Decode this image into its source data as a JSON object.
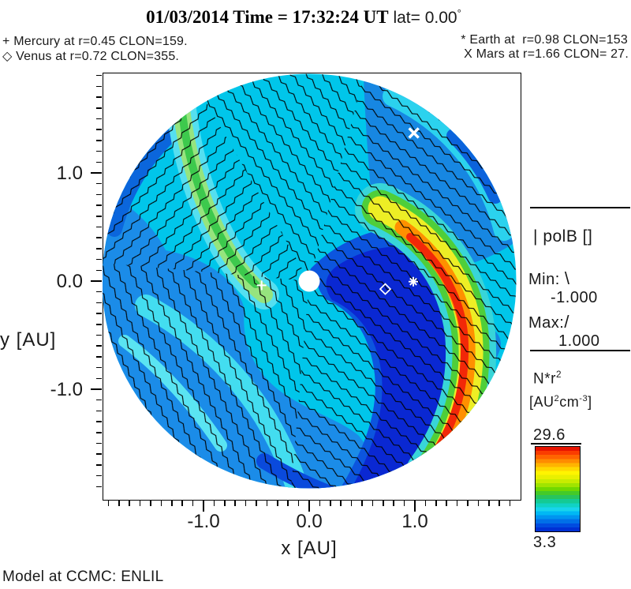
{
  "header": {
    "title_main": "01/03/2014 Time = 17:32:24 UT",
    "title_lat": " lat= 0.00",
    "degree_symbol": "°"
  },
  "planets_legend": {
    "mercury": "+ Mercury at r=0.45 CLON=159.",
    "venus": "◇ Venus at r=0.72 CLON=355.",
    "earth": "* Earth at  r=0.98 CLON=153",
    "mars": "X Mars at r=1.66 CLON= 27."
  },
  "axes": {
    "x_label": "x [AU]",
    "y_label": "y [AU]",
    "x_ticks": [
      "-1.0",
      "0.0",
      "1.0"
    ],
    "y_ticks": [
      "1.0",
      "0.0",
      "-1.0"
    ]
  },
  "polb_legend": {
    "bar_glyph": "|",
    "title": "polB []",
    "min_label": "Min:",
    "min_glyph": "\\",
    "min_value": "-1.000",
    "max_label": "Max:",
    "max_glyph": "/",
    "max_value": "1.000"
  },
  "colorbar": {
    "quantity": "N*r",
    "quantity_sup": "2",
    "units_pre": "[AU",
    "units_sup1": "2",
    "units_mid": "cm",
    "units_sup2": "-3",
    "units_post": "]",
    "max": "29.6",
    "min": "3.3",
    "colors": [
      "#e81400",
      "#fa3c00",
      "#ff6400",
      "#ff8c00",
      "#ffb400",
      "#ffd800",
      "#fff400",
      "#e8f000",
      "#c8ec00",
      "#a0e400",
      "#70d800",
      "#44ca28",
      "#28c45c",
      "#14ca94",
      "#10d2c4",
      "#18d4ec",
      "#00b8f4",
      "#0094f0",
      "#0070e8",
      "#004ce0",
      "#0030d4"
    ]
  },
  "footer": {
    "model": "Model at CCMC: ENLIL"
  },
  "chart_data": {
    "type": "polar-heatmap",
    "model": "ENLIL",
    "datetime": "01/03/2014 17:32:24 UT",
    "latitude_deg": 0.0,
    "quantity": "N*r^2 [AU^2 cm^-3]",
    "scale_min": 3.3,
    "scale_max": 29.6,
    "polB_min": -1.0,
    "polB_max": 1.0,
    "x_range_au": [
      -1.95,
      1.95
    ],
    "y_range_au": [
      -1.95,
      1.95
    ],
    "disk_radius_au": 1.95,
    "sun": {
      "x_au": 0.0,
      "y_au": 0.0
    },
    "planets": [
      {
        "name": "mercury",
        "symbol": "+",
        "r_au": 0.45,
        "clon": 159,
        "x_au": -0.45,
        "y_au": -0.04
      },
      {
        "name": "venus",
        "symbol": "diamond",
        "r_au": 0.72,
        "clon": 355,
        "x_au": 0.72,
        "y_au": -0.075
      },
      {
        "name": "earth",
        "symbol": "*",
        "r_au": 0.98,
        "clon": 153,
        "x_au": 0.985,
        "y_au": -0.005
      },
      {
        "name": "mars",
        "symbol": "X",
        "r_au": 1.66,
        "clon": 27,
        "x_au": 0.99,
        "y_au": 1.4
      }
    ],
    "palette": {
      "background_cyan": "#00c6ea",
      "medium_blue": "#1b8ce8",
      "medium_blue2": "#1787e2",
      "light_cyan": "#43ddf0",
      "light_cyan2": "#5ae4f2",
      "rim_cyan": "#2bd2ee",
      "navy": "#0a28d2",
      "navy_halo": "#0c55de",
      "green_core": "#3dc94d",
      "green_halo": "#96e47e",
      "green_cyan_halo": "#55dff0",
      "cme_cyan": "#38d5d8",
      "cme_green": "#4fce3a",
      "cme_yellow": "#edee25",
      "cme_orange": "#ff9000",
      "cme_red": "#f22808",
      "rim_dark_blue": "#0b66dc",
      "rim_dark_blue2": "#0b63dc",
      "bottom_dark_blue": "#0a4adc",
      "br_blue": "#1585e2"
    },
    "features": [
      {
        "name": "high-density-cir-arc",
        "color": "red-yellow",
        "location": "east limb, r≈1.0→2.0 AU sweeping clockwise to south"
      },
      {
        "name": "rarefaction-region",
        "color": "dark navy",
        "location": "east of Sun spiraling to south rim"
      },
      {
        "name": "density-arc",
        "color": "green",
        "location": "northwest, r≈1.5→2.0 AU"
      },
      {
        "name": "polarity-hatching",
        "style": "spiral line sectors \\ and /",
        "location": "entire disk"
      }
    ]
  }
}
